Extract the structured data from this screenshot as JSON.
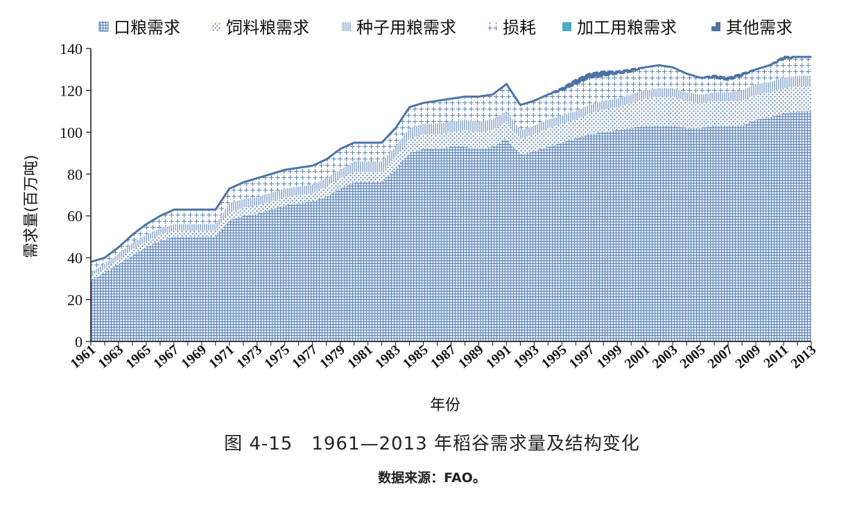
{
  "caption": "图 4-15　1961—2013 年稻谷需求量及结构变化",
  "source": "数据来源：FAO。",
  "chart_data": {
    "type": "area",
    "stacked": true,
    "xlabel": "年份",
    "ylabel": "需求量(百万吨)",
    "ylim": [
      0,
      140
    ],
    "yticks": [
      0,
      20,
      40,
      60,
      80,
      100,
      120,
      140
    ],
    "xtick_labels": [
      "1961",
      "1963",
      "1965",
      "1967",
      "1969",
      "1971",
      "1973",
      "1975",
      "1977",
      "1979",
      "1981",
      "1983",
      "1985",
      "1987",
      "1989",
      "1991",
      "1993",
      "1995",
      "1997",
      "1999",
      "2001",
      "2003",
      "2005",
      "2007",
      "2009",
      "2011",
      "2013"
    ],
    "legend_position": "top",
    "grid": false,
    "x": [
      1961,
      1962,
      1963,
      1964,
      1965,
      1966,
      1967,
      1968,
      1969,
      1970,
      1971,
      1972,
      1973,
      1974,
      1975,
      1976,
      1977,
      1978,
      1979,
      1980,
      1981,
      1982,
      1983,
      1984,
      1985,
      1986,
      1987,
      1988,
      1989,
      1990,
      1991,
      1992,
      1993,
      1994,
      1995,
      1996,
      1997,
      1998,
      1999,
      2000,
      2001,
      2002,
      2003,
      2004,
      2005,
      2006,
      2007,
      2008,
      2009,
      2010,
      2011,
      2012,
      2013
    ],
    "series": [
      {
        "name": "口粮需求",
        "color": "#5b82b8",
        "pattern": "grid",
        "values": [
          29,
          33,
          37,
          41,
          45,
          48,
          50,
          50,
          50,
          50,
          58,
          60,
          61,
          63,
          65,
          66,
          67,
          69,
          73,
          76,
          76,
          76,
          82,
          90,
          92,
          92,
          93,
          93,
          92,
          93,
          97,
          89,
          91,
          93,
          95,
          97,
          99,
          100,
          101,
          102,
          103,
          103,
          103,
          102,
          102,
          103,
          103,
          103,
          106,
          107,
          109,
          110,
          110
        ]
      },
      {
        "name": "饲料粮需求",
        "color": "#5b82b8",
        "pattern": "dots",
        "values": [
          2,
          2,
          2,
          3,
          3,
          3,
          3,
          3,
          3,
          3,
          4,
          4,
          4,
          4,
          4,
          4,
          4,
          5,
          5,
          5,
          5,
          5,
          6,
          7,
          7,
          7,
          7,
          8,
          8,
          8,
          8,
          8,
          8,
          9,
          9,
          9,
          10,
          11,
          11,
          12,
          13,
          14,
          14,
          13,
          12,
          12,
          12,
          12,
          12,
          12,
          12,
          12,
          12
        ]
      },
      {
        "name": "种子用粮需求",
        "color": "#5b82b8",
        "pattern": "vlines",
        "values": [
          2,
          2,
          3,
          3,
          3,
          3,
          3,
          3,
          3,
          3,
          4,
          4,
          4,
          4,
          4,
          4,
          4,
          4,
          4,
          5,
          5,
          5,
          5,
          5,
          5,
          5,
          5,
          5,
          5,
          5,
          5,
          4,
          4,
          4,
          4,
          4,
          4,
          4,
          4,
          4,
          4,
          4,
          4,
          4,
          4,
          4,
          4,
          5,
          5,
          5,
          5,
          5,
          5
        ]
      },
      {
        "name": "损耗",
        "color": "#5b82b8",
        "pattern": "cross",
        "values": [
          5,
          3,
          3,
          4,
          5,
          6,
          7,
          7,
          7,
          7,
          7,
          8,
          9,
          9,
          9,
          9,
          9,
          9,
          10,
          9,
          9,
          9,
          9,
          10,
          10,
          11,
          11,
          11,
          12,
          12,
          13,
          12,
          12,
          12,
          12,
          13,
          13,
          12,
          12,
          11,
          11,
          11,
          10,
          9,
          8,
          7,
          6,
          7,
          7,
          8,
          9,
          9,
          9
        ]
      },
      {
        "name": "加工用粮需求",
        "color": "#4aa8c8",
        "pattern": "solid",
        "values": [
          0,
          0,
          0,
          0,
          0,
          0,
          0,
          0,
          0,
          0,
          0,
          0,
          0,
          0,
          0,
          0,
          0,
          0,
          0,
          0,
          0,
          0,
          0,
          0,
          0,
          0,
          0,
          0,
          0,
          0,
          0,
          0,
          0,
          0,
          0,
          0,
          0,
          0,
          0,
          0,
          0,
          0,
          0,
          0,
          0,
          0,
          0,
          0,
          0,
          0,
          0,
          0,
          0
        ]
      },
      {
        "name": "其他需求",
        "color": "#4d73a8",
        "pattern": "edge",
        "values": [
          0,
          0,
          0,
          0,
          0,
          0,
          0,
          0,
          0,
          0,
          0,
          0,
          0,
          0,
          0,
          0,
          0,
          0,
          0,
          0,
          0,
          0,
          0,
          0,
          0,
          0,
          0,
          0,
          0,
          0,
          0,
          0,
          0,
          0,
          1,
          2,
          2,
          2,
          1,
          1,
          0,
          0,
          0,
          0,
          0,
          1,
          1,
          1,
          0,
          0,
          1,
          0,
          0
        ]
      }
    ]
  }
}
